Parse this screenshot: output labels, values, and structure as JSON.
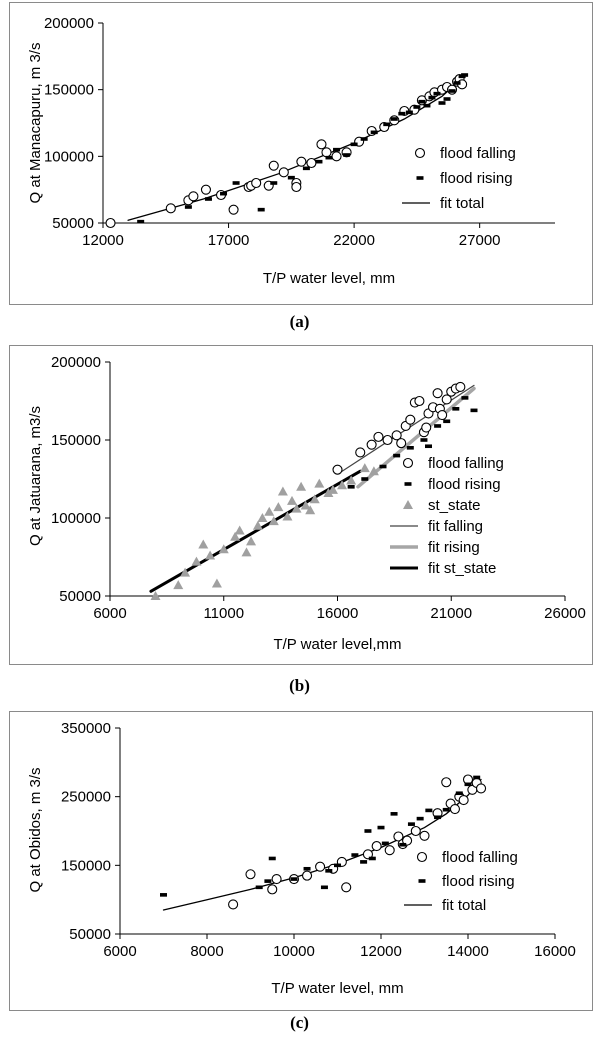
{
  "chart_data": [
    {
      "type": "scatter",
      "panel_label": "(a)",
      "xlabel": "T/P water level, mm",
      "ylabel": "Q at Manacapuru, m 3/s",
      "xlim": [
        12000,
        30000
      ],
      "ylim": [
        50000,
        200000
      ],
      "xticks": [
        12000,
        17000,
        22000,
        27000
      ],
      "yticks": [
        50000,
        100000,
        150000,
        200000
      ],
      "xtick_labels": [
        "12000",
        "17000",
        "22000",
        "27000"
      ],
      "ytick_labels": [
        "50000",
        "100000",
        "150000",
        "200000"
      ],
      "grid": false,
      "legend_position": "right",
      "series": [
        {
          "name": "flood falling",
          "marker": "circle-open",
          "points": [
            [
              12300,
              50000
            ],
            [
              14700,
              61000
            ],
            [
              15400,
              67000
            ],
            [
              15600,
              70000
            ],
            [
              16100,
              75000
            ],
            [
              16700,
              71000
            ],
            [
              17200,
              60000
            ],
            [
              17800,
              77000
            ],
            [
              17900,
              78000
            ],
            [
              18100,
              80000
            ],
            [
              18600,
              78000
            ],
            [
              18800,
              93000
            ],
            [
              19200,
              88000
            ],
            [
              19700,
              80000
            ],
            [
              19700,
              77000
            ],
            [
              19900,
              96000
            ],
            [
              20300,
              95000
            ],
            [
              20700,
              109000
            ],
            [
              20900,
              103000
            ],
            [
              21300,
              100000
            ],
            [
              21700,
              103000
            ],
            [
              22200,
              111000
            ],
            [
              22700,
              119000
            ],
            [
              23200,
              122000
            ],
            [
              23600,
              127000
            ],
            [
              24000,
              134000
            ],
            [
              24400,
              135000
            ],
            [
              24700,
              142000
            ],
            [
              25000,
              145000
            ],
            [
              25200,
              148000
            ],
            [
              25500,
              150000
            ],
            [
              25700,
              152000
            ],
            [
              25900,
              150000
            ],
            [
              26100,
              156000
            ],
            [
              26200,
              158000
            ],
            [
              26300,
              154000
            ]
          ]
        },
        {
          "name": "flood rising",
          "marker": "rect-filled",
          "points": [
            [
              13500,
              51000
            ],
            [
              15400,
              62000
            ],
            [
              16200,
              68000
            ],
            [
              16800,
              72000
            ],
            [
              17300,
              80000
            ],
            [
              18300,
              60000
            ],
            [
              18800,
              80000
            ],
            [
              19500,
              84000
            ],
            [
              20100,
              91000
            ],
            [
              20600,
              96000
            ],
            [
              21000,
              99000
            ],
            [
              21300,
              105000
            ],
            [
              21700,
              101000
            ],
            [
              22000,
              109000
            ],
            [
              22400,
              113000
            ],
            [
              22800,
              118000
            ],
            [
              23300,
              124000
            ],
            [
              23600,
              128000
            ],
            [
              23900,
              132000
            ],
            [
              24200,
              133000
            ],
            [
              24500,
              137000
            ],
            [
              24700,
              141000
            ],
            [
              24900,
              138000
            ],
            [
              25100,
              144000
            ],
            [
              25300,
              147000
            ],
            [
              25500,
              140000
            ],
            [
              25700,
              143000
            ],
            [
              25900,
              149000
            ],
            [
              26100,
              155000
            ],
            [
              26300,
              160000
            ],
            [
              26400,
              161000
            ]
          ]
        },
        {
          "name": "fit total",
          "marker": "line",
          "points": [
            [
              13000,
              52000
            ],
            [
              16000,
              68000
            ],
            [
              19000,
              87000
            ],
            [
              22000,
              110000
            ],
            [
              24000,
              128000
            ],
            [
              25500,
              145000
            ],
            [
              26400,
              160000
            ]
          ]
        }
      ]
    },
    {
      "type": "scatter",
      "panel_label": "(b)",
      "xlabel": "T/P water level,mm",
      "ylabel": "Q at Jatuarana, m3/s",
      "xlim": [
        6000,
        26000
      ],
      "ylim": [
        50000,
        200000
      ],
      "xticks": [
        6000,
        11000,
        16000,
        21000,
        26000
      ],
      "yticks": [
        50000,
        100000,
        150000,
        200000
      ],
      "xtick_labels": [
        "6000",
        "11000",
        "16000",
        "21000",
        "26000"
      ],
      "ytick_labels": [
        "50000",
        "100000",
        "150000",
        "200000"
      ],
      "grid": false,
      "legend_position": "right",
      "series": [
        {
          "name": "flood falling",
          "marker": "circle-open",
          "points": [
            [
              16000,
              131000
            ],
            [
              17000,
              142000
            ],
            [
              17500,
              147000
            ],
            [
              17800,
              152000
            ],
            [
              18200,
              150000
            ],
            [
              18600,
              153000
            ],
            [
              19000,
              159000
            ],
            [
              19200,
              163000
            ],
            [
              19400,
              174000
            ],
            [
              19600,
              175000
            ],
            [
              19800,
              155000
            ],
            [
              20000,
              167000
            ],
            [
              20200,
              171000
            ],
            [
              20400,
              180000
            ],
            [
              20500,
              170000
            ],
            [
              20600,
              166000
            ],
            [
              20800,
              176000
            ],
            [
              21000,
              181000
            ],
            [
              21200,
              183000
            ],
            [
              21400,
              184000
            ],
            [
              18800,
              148000
            ],
            [
              19900,
              158000
            ]
          ]
        },
        {
          "name": "flood rising",
          "marker": "rect-filled",
          "points": [
            [
              16600,
              120000
            ],
            [
              17200,
              125000
            ],
            [
              18000,
              133000
            ],
            [
              18600,
              140000
            ],
            [
              19200,
              145000
            ],
            [
              19800,
              150000
            ],
            [
              20400,
              159000
            ],
            [
              20800,
              162000
            ],
            [
              21200,
              170000
            ],
            [
              21600,
              177000
            ],
            [
              22000,
              169000
            ],
            [
              20000,
              146000
            ]
          ]
        },
        {
          "name": "st_state",
          "marker": "triangle-filled",
          "points": [
            [
              8000,
              50000
            ],
            [
              9000,
              57000
            ],
            [
              9300,
              65000
            ],
            [
              9800,
              72000
            ],
            [
              10100,
              83000
            ],
            [
              10400,
              76000
            ],
            [
              10700,
              58000
            ],
            [
              11000,
              80000
            ],
            [
              11500,
              88000
            ],
            [
              11700,
              92000
            ],
            [
              12000,
              78000
            ],
            [
              12200,
              85000
            ],
            [
              12500,
              95000
            ],
            [
              12700,
              100000
            ],
            [
              13000,
              104000
            ],
            [
              13200,
              98000
            ],
            [
              13400,
              107000
            ],
            [
              13600,
              117000
            ],
            [
              13800,
              101000
            ],
            [
              14000,
              111000
            ],
            [
              14200,
              106000
            ],
            [
              14400,
              120000
            ],
            [
              14600,
              108000
            ],
            [
              14800,
              105000
            ],
            [
              15000,
              112000
            ],
            [
              15200,
              122000
            ],
            [
              15600,
              116000
            ],
            [
              15800,
              118000
            ],
            [
              16200,
              121000
            ],
            [
              16600,
              124000
            ],
            [
              17200,
              132000
            ],
            [
              17600,
              130000
            ]
          ]
        },
        {
          "name": "fit falling",
          "marker": "line-thin",
          "points": [
            [
              16200,
              130000
            ],
            [
              22000,
              185000
            ]
          ]
        },
        {
          "name": "fit rising",
          "marker": "line-thick-gray",
          "points": [
            [
              16900,
              120000
            ],
            [
              22000,
              183000
            ]
          ]
        },
        {
          "name": "fit st_state",
          "marker": "line-thick-black",
          "points": [
            [
              7800,
              53000
            ],
            [
              17000,
              130000
            ]
          ]
        }
      ]
    },
    {
      "type": "scatter",
      "panel_label": "(c)",
      "xlabel": "T/P water level, mm",
      "ylabel": "Q at Obidos, m 3/s",
      "xlim": [
        6000,
        16000
      ],
      "ylim": [
        50000,
        350000
      ],
      "xticks": [
        6000,
        8000,
        10000,
        12000,
        14000,
        16000
      ],
      "yticks": [
        50000,
        150000,
        250000,
        350000
      ],
      "xtick_labels": [
        "6000",
        "8000",
        "10000",
        "12000",
        "14000",
        "16000"
      ],
      "ytick_labels": [
        "50000",
        "150000",
        "250000",
        "350000"
      ],
      "grid": false,
      "legend_position": "right",
      "series": [
        {
          "name": "flood falling",
          "marker": "circle-open",
          "points": [
            [
              8600,
              93000
            ],
            [
              9000,
              137000
            ],
            [
              9500,
              115000
            ],
            [
              9600,
              130000
            ],
            [
              10000,
              130000
            ],
            [
              10300,
              135000
            ],
            [
              10600,
              148000
            ],
            [
              10900,
              145000
            ],
            [
              11100,
              155000
            ],
            [
              11200,
              118000
            ],
            [
              11700,
              166000
            ],
            [
              11900,
              178000
            ],
            [
              12200,
              172000
            ],
            [
              12400,
              192000
            ],
            [
              12500,
              181000
            ],
            [
              12600,
              186000
            ],
            [
              12800,
              200000
            ],
            [
              13000,
              193000
            ],
            [
              13300,
              226000
            ],
            [
              13500,
              271000
            ],
            [
              13600,
              240000
            ],
            [
              13700,
              232000
            ],
            [
              13800,
              250000
            ],
            [
              13900,
              245000
            ],
            [
              14000,
              275000
            ],
            [
              14100,
              260000
            ],
            [
              14200,
              270000
            ],
            [
              14300,
              262000
            ]
          ]
        },
        {
          "name": "flood rising",
          "marker": "rect-filled",
          "points": [
            [
              7000,
              107000
            ],
            [
              9200,
              118000
            ],
            [
              9400,
              127000
            ],
            [
              9500,
              160000
            ],
            [
              10000,
              130000
            ],
            [
              10300,
              145000
            ],
            [
              10700,
              118000
            ],
            [
              10800,
              142000
            ],
            [
              11000,
              150000
            ],
            [
              11400,
              165000
            ],
            [
              11600,
              155000
            ],
            [
              11700,
              200000
            ],
            [
              11800,
              160000
            ],
            [
              12000,
              205000
            ],
            [
              12100,
              182000
            ],
            [
              12300,
              225000
            ],
            [
              12500,
              180000
            ],
            [
              12700,
              210000
            ],
            [
              12900,
              218000
            ],
            [
              13100,
              230000
            ],
            [
              13300,
              220000
            ],
            [
              13500,
              231000
            ],
            [
              13800,
              255000
            ],
            [
              14000,
              268000
            ],
            [
              14200,
              278000
            ]
          ]
        },
        {
          "name": "fit total",
          "marker": "line",
          "points": [
            [
              7000,
              85000
            ],
            [
              8000,
              100000
            ],
            [
              9000,
              115000
            ],
            [
              10000,
              132000
            ],
            [
              11000,
              152000
            ],
            [
              12000,
              176000
            ],
            [
              13000,
              205000
            ],
            [
              13500,
              225000
            ],
            [
              14000,
              252000
            ],
            [
              14300,
              275000
            ]
          ]
        }
      ]
    }
  ],
  "captions": [
    "(a)",
    "(b)",
    "(c)"
  ]
}
